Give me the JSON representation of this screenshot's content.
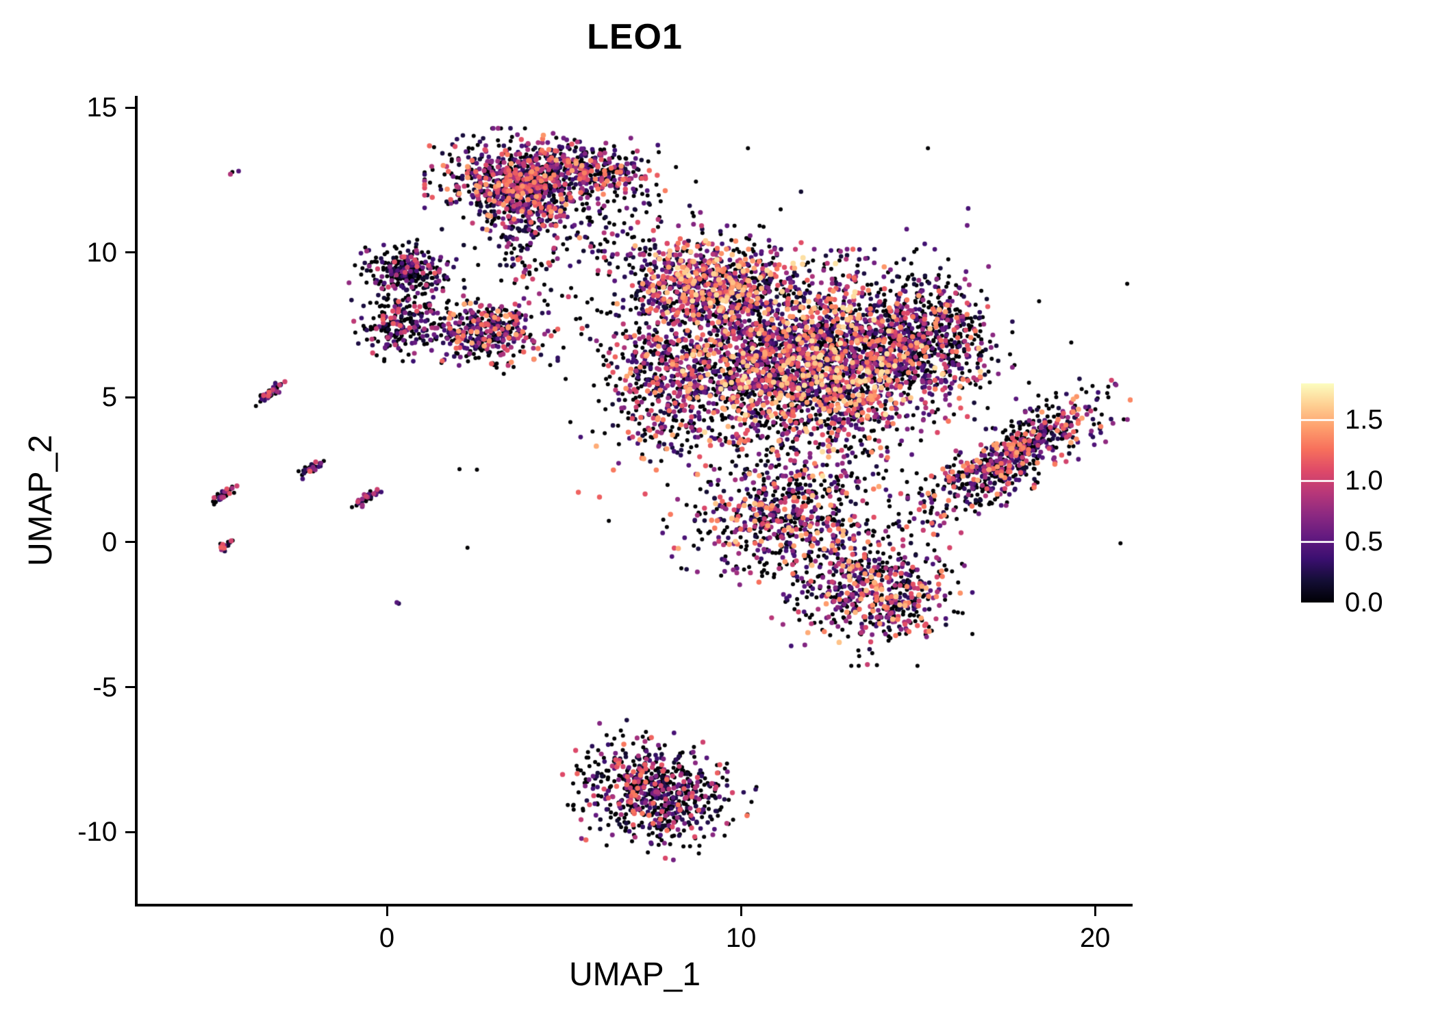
{
  "page": {
    "background": "#ffffff"
  },
  "chart_data": {
    "type": "scatter",
    "title": "LEO1",
    "xlabel": "UMAP_1",
    "ylabel": "UMAP_2",
    "xlim": [
      -7.04,
      21.06
    ],
    "ylim": [
      -12.48,
      15.41
    ],
    "x_ticks": [
      {
        "v": 0,
        "label": "0"
      },
      {
        "v": 10,
        "label": "10"
      },
      {
        "v": 20,
        "label": "20"
      }
    ],
    "y_ticks": [
      {
        "v": 15,
        "label": "15"
      },
      {
        "v": 10,
        "label": "10"
      },
      {
        "v": 5,
        "label": "5"
      },
      {
        "v": 0,
        "label": "0"
      },
      {
        "v": -5,
        "label": "-5"
      },
      {
        "v": -10,
        "label": "-10"
      }
    ],
    "grid": false,
    "axis_color": "#000000",
    "text_color": "#000000",
    "legend": {
      "position": "right",
      "vmin": 0.0,
      "vmax": 1.8,
      "ticks": [
        {
          "v": 1.5,
          "label": "1.5"
        },
        {
          "v": 1.0,
          "label": "1.0"
        },
        {
          "v": 0.5,
          "label": "0.5"
        },
        {
          "v": 0.0,
          "label": "0.0"
        }
      ]
    },
    "colormap": {
      "name": "magma",
      "stops": [
        [
          0.0,
          "#000004"
        ],
        [
          0.1,
          "#140e36"
        ],
        [
          0.2,
          "#3b0f70"
        ],
        [
          0.3,
          "#641a80"
        ],
        [
          0.4,
          "#8c2981"
        ],
        [
          0.5,
          "#b73779"
        ],
        [
          0.6,
          "#de4968"
        ],
        [
          0.7,
          "#f7705c"
        ],
        [
          0.8,
          "#fe9f6d"
        ],
        [
          0.9,
          "#fecf92"
        ],
        [
          1.0,
          "#fcfdbf"
        ]
      ]
    },
    "seed": 7,
    "clusters": [
      {
        "name": "top-blob-core",
        "cx": 3.9,
        "cy": 12.4,
        "sx": 1.05,
        "sy": 0.7,
        "rot": 0,
        "n": 850,
        "zero_frac": 0.38,
        "v_max": 1.5,
        "skew": 1.3
      },
      {
        "name": "top-blob-east",
        "cx": 5.7,
        "cy": 12.9,
        "sx": 0.95,
        "sy": 0.45,
        "rot": 0,
        "n": 280,
        "zero_frac": 0.45,
        "v_max": 1.4,
        "skew": 1.4
      },
      {
        "name": "top-blob-tail",
        "cx": 3.9,
        "cy": 10.5,
        "sx": 0.65,
        "sy": 0.75,
        "rot": 0,
        "n": 130,
        "zero_frac": 0.5,
        "v_max": 1.3,
        "skew": 1.5
      },
      {
        "name": "bridge-sparse",
        "cx": 6.4,
        "cy": 10.8,
        "sx": 1.0,
        "sy": 0.9,
        "rot": 0,
        "n": 80,
        "zero_frac": 0.55,
        "v_max": 1.2,
        "skew": 1.5
      },
      {
        "name": "west-blob-upper",
        "cx": 0.55,
        "cy": 9.4,
        "sx": 0.6,
        "sy": 0.42,
        "rot": 0,
        "n": 270,
        "zero_frac": 0.58,
        "v_max": 1.2,
        "skew": 1.8
      },
      {
        "name": "west-blob-lower",
        "cx": 0.35,
        "cy": 7.6,
        "sx": 0.5,
        "sy": 0.5,
        "rot": 0,
        "n": 210,
        "zero_frac": 0.58,
        "v_max": 1.2,
        "skew": 1.8
      },
      {
        "name": "west-mid-blob",
        "cx": 2.8,
        "cy": 7.3,
        "sx": 0.75,
        "sy": 0.55,
        "rot": 0,
        "n": 380,
        "zero_frac": 0.38,
        "v_max": 1.5,
        "skew": 1.3
      },
      {
        "name": "main-nw-lobe",
        "cx": 9.2,
        "cy": 8.9,
        "sx": 1.05,
        "sy": 0.75,
        "rot": 0,
        "n": 800,
        "zero_frac": 0.32,
        "v_max": 1.7,
        "skew": 1.3
      },
      {
        "name": "main-core",
        "cx": 11.9,
        "cy": 6.2,
        "sx": 1.8,
        "sy": 1.45,
        "rot": 0,
        "n": 2700,
        "zero_frac": 0.35,
        "v_max": 1.7,
        "skew": 1.5
      },
      {
        "name": "main-west-lobe",
        "cx": 7.9,
        "cy": 5.6,
        "sx": 0.8,
        "sy": 1.15,
        "rot": 0,
        "n": 450,
        "zero_frac": 0.4,
        "v_max": 1.5,
        "skew": 1.4
      },
      {
        "name": "main-east-lobe",
        "cx": 15.1,
        "cy": 7.2,
        "sx": 0.95,
        "sy": 0.95,
        "rot": 0,
        "n": 650,
        "zero_frac": 0.5,
        "v_max": 1.4,
        "skew": 1.6
      },
      {
        "name": "main-south",
        "cx": 11.2,
        "cy": 0.9,
        "sx": 1.3,
        "sy": 1.0,
        "rot": 0,
        "n": 650,
        "zero_frac": 0.4,
        "v_max": 1.6,
        "skew": 1.4
      },
      {
        "name": "south-hook",
        "cx": 13.7,
        "cy": -1.7,
        "sx": 1.05,
        "sy": 0.95,
        "rot": 0,
        "n": 600,
        "zero_frac": 0.38,
        "v_max": 1.6,
        "skew": 1.4
      },
      {
        "name": "east-arm",
        "cx": 17.6,
        "cy": 2.9,
        "sx": 1.45,
        "sy": 0.45,
        "rot": 38,
        "n": 700,
        "zero_frac": 0.45,
        "v_max": 1.5,
        "skew": 1.5
      },
      {
        "name": "bottom-cluster",
        "cx": 7.6,
        "cy": -8.6,
        "sx": 1.0,
        "sy": 0.8,
        "rot": -15,
        "n": 700,
        "zero_frac": 0.55,
        "v_max": 1.3,
        "skew": 1.6
      },
      {
        "name": "streak-a",
        "cx": -3.3,
        "cy": 5.15,
        "sx": 0.3,
        "sy": 0.06,
        "rot": 42,
        "n": 45,
        "zero_frac": 0.5,
        "v_max": 1.2,
        "skew": 1.2
      },
      {
        "name": "streak-b",
        "cx": -2.15,
        "cy": 2.55,
        "sx": 0.22,
        "sy": 0.06,
        "rot": 42,
        "n": 35,
        "zero_frac": 0.5,
        "v_max": 1.2,
        "skew": 1.2
      },
      {
        "name": "streak-c",
        "cx": -4.6,
        "cy": 1.65,
        "sx": 0.26,
        "sy": 0.06,
        "rot": 42,
        "n": 40,
        "zero_frac": 0.5,
        "v_max": 1.2,
        "skew": 1.2
      },
      {
        "name": "streak-d",
        "cx": -0.6,
        "cy": 1.5,
        "sx": 0.26,
        "sy": 0.06,
        "rot": 42,
        "n": 40,
        "zero_frac": 0.5,
        "v_max": 1.2,
        "skew": 1.2
      },
      {
        "name": "streak-e",
        "cx": -4.55,
        "cy": -0.1,
        "sx": 0.13,
        "sy": 0.05,
        "rot": 42,
        "n": 16,
        "zero_frac": 0.5,
        "v_max": 1.2,
        "skew": 1.2
      },
      {
        "name": "dot-northwest",
        "cx": -4.35,
        "cy": 12.8,
        "sx": 0.06,
        "sy": 0.05,
        "rot": 0,
        "n": 3,
        "zero_frac": 0.2,
        "v_max": 1.3,
        "skew": 0.8
      },
      {
        "name": "dot-south",
        "cx": 0.35,
        "cy": -2.1,
        "sx": 0.05,
        "sy": 0.04,
        "rot": 0,
        "n": 2,
        "zero_frac": 0.6,
        "v_max": 0.8,
        "skew": 1.0
      },
      {
        "name": "halo-main",
        "cx": 11.5,
        "cy": 5.5,
        "sx": 3.5,
        "sy": 3.0,
        "rot": 0,
        "n": 220,
        "zero_frac": 0.6,
        "v_max": 1.3,
        "skew": 1.6
      },
      {
        "name": "halo-west",
        "cx": 5.8,
        "cy": 8.2,
        "sx": 1.2,
        "sy": 1.4,
        "rot": 0,
        "n": 60,
        "zero_frac": 0.6,
        "v_max": 1.2,
        "skew": 1.6
      }
    ]
  }
}
